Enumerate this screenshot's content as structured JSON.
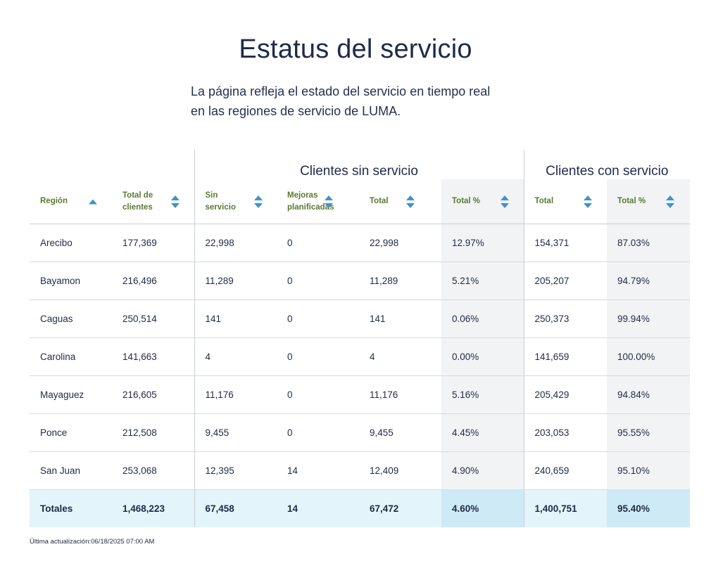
{
  "page": {
    "title": "Estatus del servicio",
    "intro_line1": "La página refleja el estado del servicio en tiempo real",
    "intro_line2": "en las regiones de servicio de LUMA."
  },
  "groups": {
    "without": "Clientes sin servicio",
    "with": "Clientes con servicio"
  },
  "columns": {
    "region": "Región",
    "total_clients_1": "Total de",
    "total_clients_2": "clientes",
    "sin_1": "Sin",
    "sin_2": "servicio",
    "planned_1": "Mejoras",
    "planned_2": "planificadas",
    "total_out": "Total",
    "total_out_pct": "Total %",
    "total_in": "Total",
    "total_in_pct": "Total %"
  },
  "rows": [
    {
      "region": "Arecibo",
      "total_clients": "177,369",
      "sin_servicio": "22,998",
      "planned": "0",
      "total_out": "22,998",
      "out_pct": "12.97%",
      "total_in": "154,371",
      "in_pct": "87.03%"
    },
    {
      "region": "Bayamon",
      "total_clients": "216,496",
      "sin_servicio": "11,289",
      "planned": "0",
      "total_out": "11,289",
      "out_pct": "5.21%",
      "total_in": "205,207",
      "in_pct": "94.79%"
    },
    {
      "region": "Caguas",
      "total_clients": "250,514",
      "sin_servicio": "141",
      "planned": "0",
      "total_out": "141",
      "out_pct": "0.06%",
      "total_in": "250,373",
      "in_pct": "99.94%"
    },
    {
      "region": "Carolina",
      "total_clients": "141,663",
      "sin_servicio": "4",
      "planned": "0",
      "total_out": "4",
      "out_pct": "0.00%",
      "total_in": "141,659",
      "in_pct": "100.00%"
    },
    {
      "region": "Mayaguez",
      "total_clients": "216,605",
      "sin_servicio": "11,176",
      "planned": "0",
      "total_out": "11,176",
      "out_pct": "5.16%",
      "total_in": "205,429",
      "in_pct": "94.84%"
    },
    {
      "region": "Ponce",
      "total_clients": "212,508",
      "sin_servicio": "9,455",
      "planned": "0",
      "total_out": "9,455",
      "out_pct": "4.45%",
      "total_in": "203,053",
      "in_pct": "95.55%"
    },
    {
      "region": "San Juan",
      "total_clients": "253,068",
      "sin_servicio": "12,395",
      "planned": "14",
      "total_out": "12,409",
      "out_pct": "4.90%",
      "total_in": "240,659",
      "in_pct": "95.10%"
    }
  ],
  "totals": {
    "region": "Totales",
    "total_clients": "1,468,223",
    "sin_servicio": "67,458",
    "planned": "14",
    "total_out": "67,472",
    "out_pct": "4.60%",
    "total_in": "1,400,751",
    "in_pct": "95.40%"
  },
  "footer": {
    "last_updated": "Última actualización:06/18/2025 07:00 AM"
  },
  "colors": {
    "header_text": "#5a7a2f",
    "sort_arrow": "#3f93c7",
    "pct_shade": "#f2f3f5",
    "totals_bg": "#e3f4fb"
  }
}
